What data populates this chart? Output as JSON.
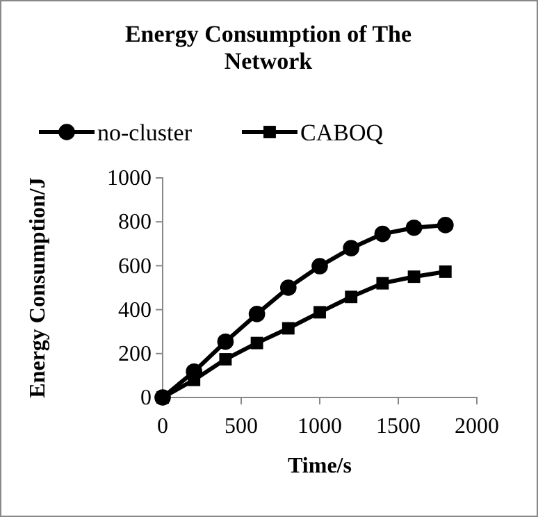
{
  "chart_data": {
    "type": "line",
    "title": "Energy Consumption of The Network",
    "xlabel": "Time/s",
    "ylabel": "Energy  Consumption/J",
    "x": [
      0,
      200,
      400,
      600,
      800,
      1000,
      1200,
      1400,
      1600,
      1800
    ],
    "series": [
      {
        "name": "no-cluster",
        "color": "#000000",
        "marker": "circle",
        "values": [
          0,
          118,
          254,
          380,
          500,
          598,
          680,
          745,
          773,
          785
        ]
      },
      {
        "name": "CABOQ",
        "color": "#000000",
        "marker": "square",
        "values": [
          0,
          80,
          174,
          248,
          315,
          388,
          458,
          520,
          550,
          573
        ]
      }
    ],
    "xlim": [
      0,
      2000
    ],
    "xticks": [
      0,
      500,
      1000,
      1500,
      2000
    ],
    "ylim": [
      0,
      1000
    ],
    "yticks": [
      0,
      200,
      400,
      600,
      800,
      1000
    ],
    "grid": false,
    "legend": "top",
    "line_style": "solid"
  }
}
